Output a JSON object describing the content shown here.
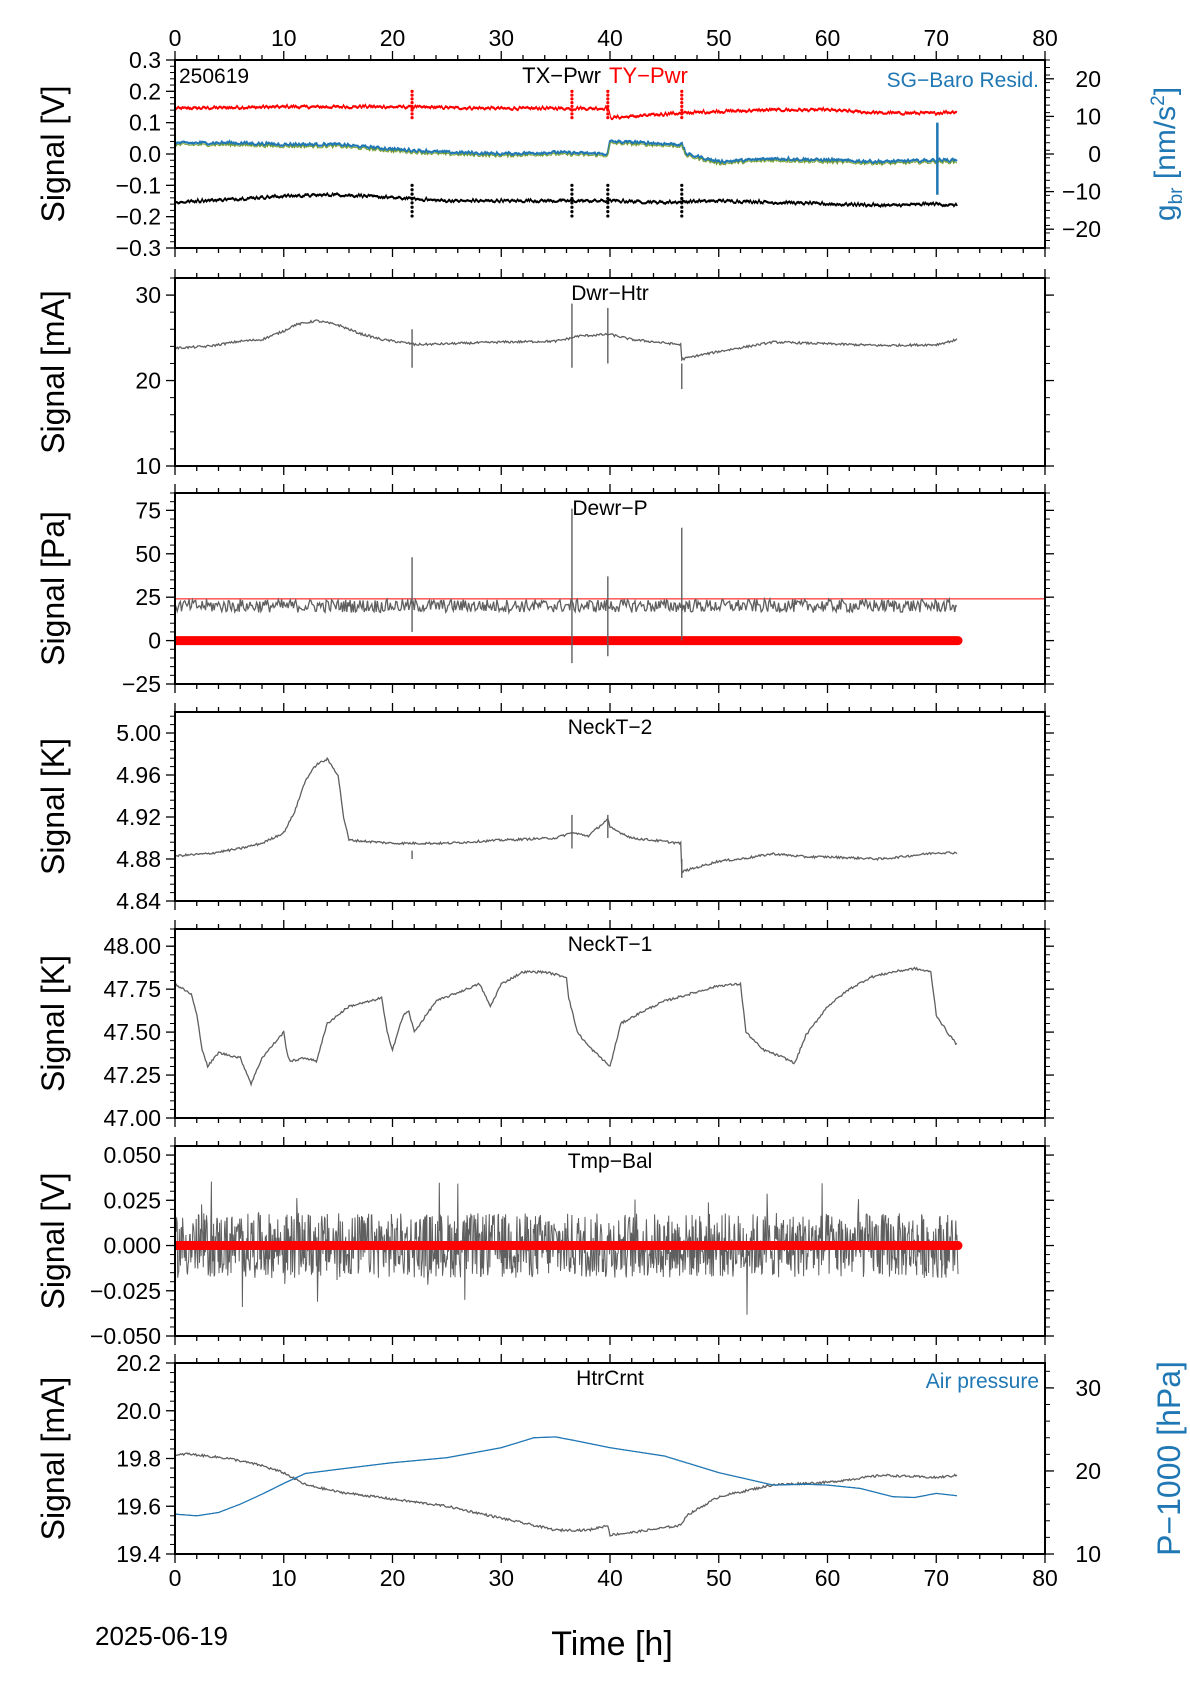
{
  "figure": {
    "date_label": "2025-06-19",
    "xlabel": "Time [h]",
    "x_ticks": [
      "0",
      "10",
      "20",
      "30",
      "40",
      "50",
      "60",
      "70",
      "80"
    ]
  },
  "colors": {
    "gray": "#5f5f5f",
    "red": "#ff0000",
    "black": "#000000",
    "blue": "#1f77b4",
    "green": "#7aa030",
    "white": "#ffffff"
  },
  "chart_data": [
    {
      "type": "line",
      "ylabel": "Signal [V]",
      "y2label_main": "g",
      "y2label_sub": "br",
      "y2label_unit_open": " [nm/s",
      "y2label_unit_sup": "2",
      "y2label_unit_close": "]",
      "stamp": "250619",
      "title_parts": [
        "TX−Pwr",
        "TY−Pwr"
      ],
      "right_legend": "SG−Baro Resid.",
      "xlim": [
        0,
        80
      ],
      "ylim": [
        -0.3,
        0.3
      ],
      "y_ticks": [
        "−0.3",
        "−0.2",
        "−0.1",
        "0.0",
        "0.1",
        "0.2",
        "0.3"
      ],
      "y2lim": [
        -25,
        25
      ],
      "y2_ticks": [
        "−20",
        "−10",
        "0",
        "10",
        "20"
      ],
      "series": [
        {
          "name": "TY−Pwr",
          "color": "red",
          "x": [
            0,
            10,
            20,
            30,
            36.5,
            39.8,
            40,
            46.6,
            50,
            55,
            60,
            65,
            70,
            72
          ],
          "y": [
            0.145,
            0.15,
            0.15,
            0.145,
            0.145,
            0.145,
            0.115,
            0.13,
            0.135,
            0.14,
            0.14,
            0.13,
            0.13,
            0.135
          ]
        },
        {
          "name": "TX−Pwr",
          "color": "black",
          "x": [
            0,
            5,
            10,
            15,
            20,
            25,
            30,
            36.5,
            40,
            45,
            50,
            55,
            60,
            65,
            70,
            72
          ],
          "y": [
            -0.155,
            -0.145,
            -0.135,
            -0.13,
            -0.14,
            -0.15,
            -0.15,
            -0.15,
            -0.15,
            -0.155,
            -0.15,
            -0.155,
            -0.16,
            -0.165,
            -0.16,
            -0.165
          ]
        },
        {
          "name": "SG−Baro Resid.",
          "color": "blue",
          "x": [
            0,
            5,
            10,
            15,
            20,
            25,
            30,
            35,
            39.8,
            40,
            46.6,
            47,
            50,
            55,
            60,
            65,
            70,
            72
          ],
          "y": [
            0.035,
            0.035,
            0.03,
            0.03,
            0.015,
            0.005,
            0.0,
            0.005,
            0.0,
            0.04,
            0.03,
            0.0,
            -0.025,
            -0.015,
            -0.02,
            -0.025,
            -0.02,
            -0.02
          ]
        }
      ]
    },
    {
      "type": "line",
      "ylabel": "Signal [mA]",
      "title": "Dwr−Htr",
      "xlim": [
        0,
        80
      ],
      "ylim": [
        10,
        32
      ],
      "y_ticks": [
        "10",
        "20",
        "30"
      ],
      "series": [
        {
          "color": "gray",
          "x": [
            0,
            3,
            6,
            8,
            10,
            11,
            13,
            15,
            17,
            19,
            21.8,
            22,
            25,
            30,
            35,
            36.5,
            37,
            39.8,
            40,
            42,
            46.5,
            46.6,
            48,
            50,
            55,
            60,
            65,
            70,
            72
          ],
          "y": [
            23.8,
            24.0,
            24.6,
            24.8,
            25.8,
            26.5,
            27.0,
            26.5,
            25.5,
            24.8,
            24.3,
            24.2,
            24.3,
            24.5,
            24.6,
            25.0,
            25.2,
            25.4,
            25.4,
            24.8,
            24.2,
            22.5,
            22.9,
            23.4,
            24.5,
            24.3,
            24.1,
            24.2,
            24.8
          ]
        }
      ]
    },
    {
      "type": "line",
      "ylabel": "Signal [Pa]",
      "title": "Dewr−P",
      "xlim": [
        0,
        80
      ],
      "ylim": [
        -25,
        85
      ],
      "y_ticks": [
        "−25",
        "0",
        "25",
        "50",
        "75"
      ],
      "reference_line": 24,
      "series": [
        {
          "color": "gray",
          "x": [
            0,
            10,
            20,
            30,
            40,
            50,
            60,
            70,
            72
          ],
          "y": [
            20,
            20,
            20,
            20,
            20,
            20,
            20,
            20,
            20
          ]
        },
        {
          "color": "red",
          "x": [
            0,
            72
          ],
          "y": [
            0,
            0
          ]
        }
      ]
    },
    {
      "type": "line",
      "ylabel": "Signal [K]",
      "title": "NeckT−2",
      "xlim": [
        0,
        80
      ],
      "ylim": [
        4.84,
        5.02
      ],
      "y_ticks": [
        "4.84",
        "4.88",
        "4.92",
        "4.96",
        "5.00"
      ],
      "series": [
        {
          "color": "gray",
          "x": [
            0,
            3,
            6,
            8,
            10,
            11,
            12,
            13,
            14,
            15,
            15.5,
            16,
            20,
            25,
            30,
            35,
            36.5,
            38,
            39.8,
            40,
            42,
            46.5,
            46.6,
            48,
            50,
            52,
            55,
            58,
            60,
            65,
            70,
            72
          ],
          "y": [
            4.883,
            4.885,
            4.89,
            4.895,
            4.905,
            4.925,
            4.955,
            4.97,
            4.975,
            4.96,
            4.92,
            4.898,
            4.895,
            4.895,
            4.898,
            4.9,
            4.905,
            4.902,
            4.918,
            4.91,
            4.9,
            4.895,
            4.868,
            4.872,
            4.878,
            4.88,
            4.885,
            4.882,
            4.882,
            4.88,
            4.886,
            4.886
          ]
        }
      ]
    },
    {
      "type": "line",
      "ylabel": "Signal [K]",
      "title": "NeckT−1",
      "xlim": [
        0,
        80
      ],
      "ylim": [
        47.0,
        48.1
      ],
      "y_ticks": [
        "47.00",
        "47.25",
        "47.50",
        "47.75",
        "48.00"
      ],
      "series": [
        {
          "color": "gray",
          "x": [
            0,
            1.5,
            2,
            2.5,
            3,
            4,
            6,
            7,
            8,
            10,
            10.3,
            10.6,
            12,
            13,
            14,
            15,
            16,
            18,
            19,
            19.5,
            20,
            21,
            21.5,
            22,
            24,
            26,
            28,
            29,
            30,
            32,
            34,
            36,
            36.2,
            37,
            38,
            40,
            41,
            43,
            45,
            50,
            52,
            52.5,
            54,
            56,
            57,
            58,
            60,
            62,
            64,
            66,
            68,
            69.5,
            70,
            71,
            72
          ],
          "y": [
            47.78,
            47.72,
            47.6,
            47.4,
            47.3,
            47.38,
            47.35,
            47.2,
            47.35,
            47.5,
            47.38,
            47.33,
            47.35,
            47.33,
            47.55,
            47.6,
            47.65,
            47.68,
            47.7,
            47.5,
            47.4,
            47.6,
            47.62,
            47.5,
            47.68,
            47.73,
            47.78,
            47.65,
            47.78,
            47.85,
            47.85,
            47.82,
            47.7,
            47.5,
            47.42,
            47.3,
            47.55,
            47.62,
            47.68,
            47.77,
            47.78,
            47.5,
            47.4,
            47.35,
            47.32,
            47.48,
            47.65,
            47.75,
            47.82,
            47.85,
            47.87,
            47.85,
            47.6,
            47.5,
            47.42
          ]
        }
      ]
    },
    {
      "type": "line",
      "ylabel": "Signal [V]",
      "title": "Tmp−Bal",
      "xlim": [
        0,
        80
      ],
      "ylim": [
        -0.05,
        0.055
      ],
      "y_ticks": [
        "−0.050",
        "−0.025",
        "0.000",
        "0.025",
        "0.050"
      ],
      "series": [
        {
          "color": "gray",
          "x": [
            0,
            72
          ],
          "y": [
            0.0,
            0.0
          ],
          "band": [
            -0.02,
            0.02
          ]
        },
        {
          "color": "red",
          "x": [
            0,
            72
          ],
          "y": [
            0,
            0
          ]
        }
      ]
    },
    {
      "type": "line",
      "ylabel": "Signal [mA]",
      "title": "HtrCrnt",
      "right_legend": "Air pressure",
      "y2label": "P−1000 [hPa]",
      "xlim": [
        0,
        80
      ],
      "ylim": [
        19.4,
        20.2
      ],
      "y_ticks": [
        "19.4",
        "19.6",
        "19.8",
        "20.0",
        "20.2"
      ],
      "y2lim": [
        10,
        33
      ],
      "y2_ticks": [
        "10",
        "20",
        "30"
      ],
      "series": [
        {
          "name": "HtrCrnt",
          "color": "gray",
          "x": [
            0,
            1,
            3,
            5,
            8,
            10,
            12,
            15,
            20,
            25,
            30,
            35,
            38,
            39.8,
            40,
            42,
            45,
            46.5,
            47,
            50,
            55,
            60,
            65,
            70,
            72
          ],
          "y": [
            19.81,
            19.82,
            19.81,
            19.8,
            19.77,
            19.74,
            19.69,
            19.66,
            19.63,
            19.6,
            19.55,
            19.5,
            19.5,
            19.52,
            19.48,
            19.49,
            19.51,
            19.52,
            19.56,
            19.64,
            19.69,
            19.7,
            19.73,
            19.72,
            19.73
          ]
        },
        {
          "name": "Air pressure",
          "color": "blue",
          "x": [
            0,
            2,
            4,
            6,
            8,
            10,
            12,
            15,
            20,
            25,
            30,
            33,
            35,
            37,
            40,
            45,
            50,
            55,
            58,
            60,
            63,
            66,
            68,
            70,
            72
          ],
          "y": [
            14.8,
            14.6,
            15.0,
            16.0,
            17.2,
            18.5,
            19.7,
            20.2,
            21.0,
            21.6,
            22.8,
            24.0,
            24.1,
            23.6,
            22.8,
            21.8,
            19.8,
            18.3,
            18.4,
            18.3,
            17.9,
            16.9,
            16.8,
            17.3,
            17.0
          ]
        }
      ]
    }
  ]
}
